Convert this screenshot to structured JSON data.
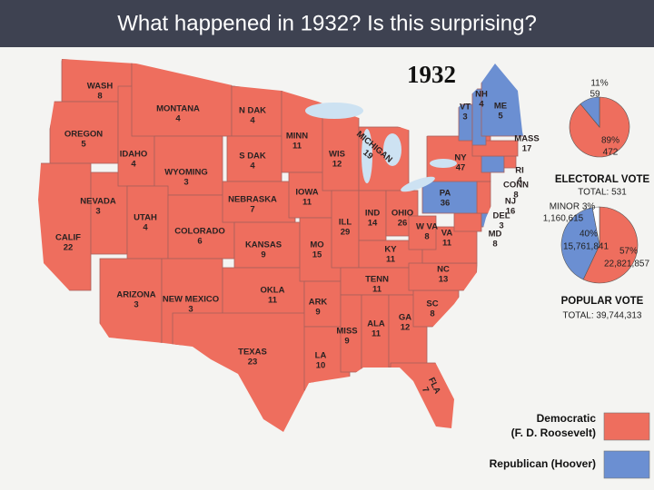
{
  "slide_title": "What happened in 1932? Is this surprising?",
  "map": {
    "title": "1932",
    "states": [
      {
        "name": "WASH",
        "votes": 8,
        "color": "#ee6e5e"
      },
      {
        "name": "OREGON",
        "votes": 5,
        "color": "#ee6e5e"
      },
      {
        "name": "CALIF",
        "votes": 22,
        "color": "#ee6e5e"
      },
      {
        "name": "NEVADA",
        "votes": 3,
        "color": "#ee6e5e"
      },
      {
        "name": "IDAHO",
        "votes": 4,
        "color": "#ee6e5e"
      },
      {
        "name": "MONTANA",
        "votes": 4,
        "color": "#ee6e5e"
      },
      {
        "name": "WYOMING",
        "votes": 3,
        "color": "#ee6e5e"
      },
      {
        "name": "UTAH",
        "votes": 4,
        "color": "#ee6e5e"
      },
      {
        "name": "COLORADO",
        "votes": 6,
        "color": "#ee6e5e"
      },
      {
        "name": "ARIZONA",
        "votes": 3,
        "color": "#ee6e5e"
      },
      {
        "name": "NEW MEXICO",
        "votes": 3,
        "color": "#ee6e5e"
      },
      {
        "name": "N DAK",
        "votes": 4,
        "color": "#ee6e5e"
      },
      {
        "name": "S DAK",
        "votes": 4,
        "color": "#ee6e5e"
      },
      {
        "name": "NEBRASKA",
        "votes": 7,
        "color": "#ee6e5e"
      },
      {
        "name": "KANSAS",
        "votes": 9,
        "color": "#ee6e5e"
      },
      {
        "name": "OKLA",
        "votes": 11,
        "color": "#ee6e5e"
      },
      {
        "name": "TEXAS",
        "votes": 23,
        "color": "#ee6e5e"
      },
      {
        "name": "MINN",
        "votes": 11,
        "color": "#ee6e5e"
      },
      {
        "name": "IOWA",
        "votes": 11,
        "color": "#ee6e5e"
      },
      {
        "name": "MO",
        "votes": 15,
        "color": "#ee6e5e"
      },
      {
        "name": "ARK",
        "votes": 9,
        "color": "#ee6e5e"
      },
      {
        "name": "LA",
        "votes": 10,
        "color": "#ee6e5e"
      },
      {
        "name": "WIS",
        "votes": 12,
        "color": "#ee6e5e"
      },
      {
        "name": "MICHIGAN",
        "votes": 19,
        "color": "#ee6e5e"
      },
      {
        "name": "ILL",
        "votes": 29,
        "color": "#ee6e5e"
      },
      {
        "name": "IND",
        "votes": 14,
        "color": "#ee6e5e"
      },
      {
        "name": "OHIO",
        "votes": 26,
        "color": "#ee6e5e"
      },
      {
        "name": "KY",
        "votes": 11,
        "color": "#ee6e5e"
      },
      {
        "name": "TENN",
        "votes": 11,
        "color": "#ee6e5e"
      },
      {
        "name": "MISS",
        "votes": 9,
        "color": "#ee6e5e"
      },
      {
        "name": "ALA",
        "votes": 11,
        "color": "#ee6e5e"
      },
      {
        "name": "GA",
        "votes": 12,
        "color": "#ee6e5e"
      },
      {
        "name": "FLA",
        "votes": 7,
        "color": "#ee6e5e"
      },
      {
        "name": "SC",
        "votes": 8,
        "color": "#ee6e5e"
      },
      {
        "name": "NC",
        "votes": 13,
        "color": "#ee6e5e"
      },
      {
        "name": "VA",
        "votes": 11,
        "color": "#ee6e5e"
      },
      {
        "name": "W VA",
        "votes": 8,
        "color": "#ee6e5e"
      },
      {
        "name": "MD",
        "votes": 8,
        "color": "#ee6e5e"
      },
      {
        "name": "DEL",
        "votes": 3,
        "color": "#6b8fd2"
      },
      {
        "name": "NJ",
        "votes": 16,
        "color": "#ee6e5e"
      },
      {
        "name": "PA",
        "votes": 36,
        "color": "#6b8fd2"
      },
      {
        "name": "NY",
        "votes": 47,
        "color": "#ee6e5e"
      },
      {
        "name": "CONN",
        "votes": 8,
        "color": "#6b8fd2"
      },
      {
        "name": "RI",
        "votes": 4,
        "color": "#ee6e5e"
      },
      {
        "name": "MASS",
        "votes": 17,
        "color": "#ee6e5e"
      },
      {
        "name": "VT",
        "votes": 3,
        "color": "#6b8fd2"
      },
      {
        "name": "NH",
        "votes": 4,
        "color": "#6b8fd2"
      },
      {
        "name": "ME",
        "votes": 5,
        "color": "#6b8fd2"
      }
    ]
  },
  "charts": [
    {
      "type": "pie",
      "title": "ELECTORAL VOTE",
      "total": "TOTAL: 531",
      "slices": [
        {
          "value": 89,
          "value_label": "89%",
          "votes": 472,
          "color": "#ee6e5e"
        },
        {
          "value": 11,
          "value_label": "11%",
          "votes": 59,
          "color": "#6b8fd2"
        }
      ]
    },
    {
      "type": "pie",
      "title": "POPULAR VOTE",
      "total": "TOTAL: 39,744,313",
      "slices": [
        {
          "value": 57,
          "value_label": "57%",
          "votes": "22,821,857",
          "color": "#ee6e5e"
        },
        {
          "value": 40,
          "value_label": "40%",
          "votes": "15,761,841",
          "color": "#6b8fd2"
        },
        {
          "value": 3,
          "value_label": "MINOR 3%",
          "votes": "1,160,615",
          "color": "#ffffff"
        }
      ]
    }
  ],
  "legend": [
    {
      "label": [
        "Democratic",
        "(F. D. Roosevelt)"
      ],
      "color": "#ee6e5e"
    },
    {
      "label": [
        "Republican (Hoover)"
      ],
      "color": "#6b8fd2"
    }
  ]
}
